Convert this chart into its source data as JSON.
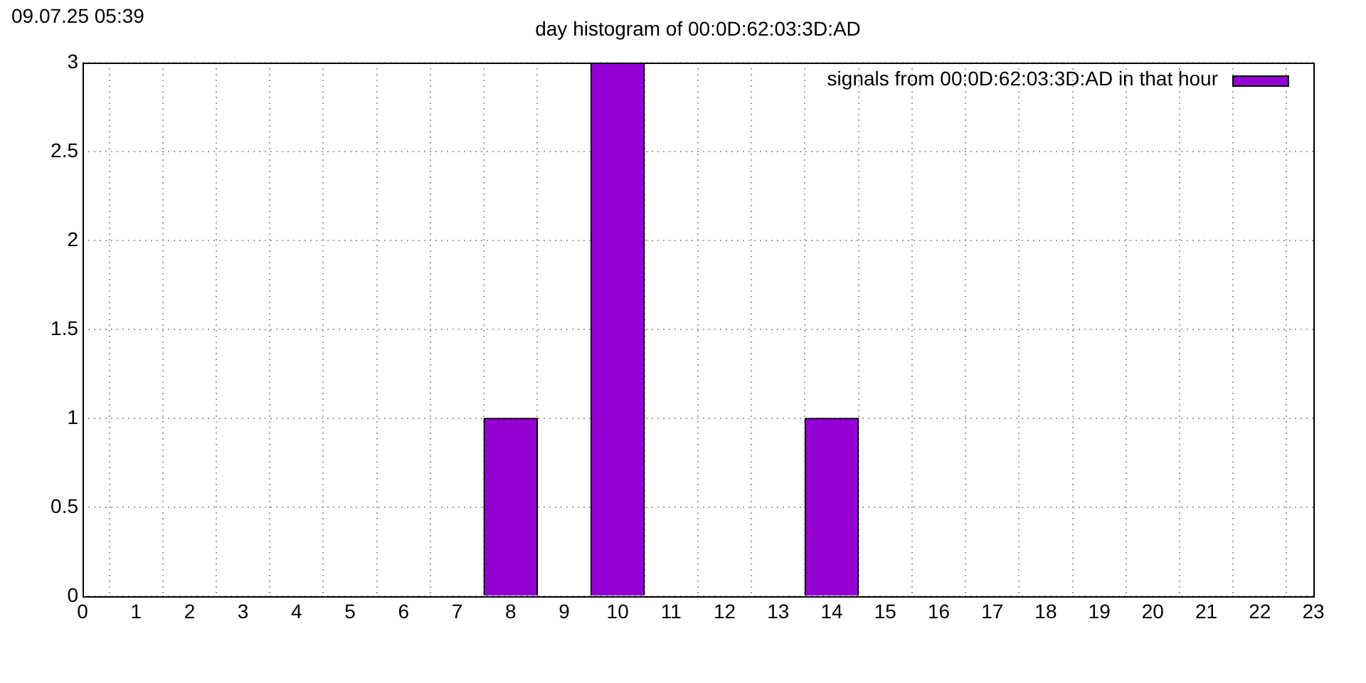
{
  "chart_data": {
    "type": "bar",
    "title": "day histogram of 00:0D:62:03:3D:AD",
    "annotations": [
      "09.07.25 05:39"
    ],
    "x": [
      8,
      10,
      14
    ],
    "series": [
      {
        "name": "signals from 00:0D:62:03:3D:AD in that hour",
        "color": "#9400d3",
        "values": [
          1,
          3,
          1
        ]
      }
    ],
    "xlim": [
      0,
      23
    ],
    "xticks": [
      0,
      1,
      2,
      3,
      4,
      5,
      6,
      7,
      8,
      9,
      10,
      11,
      12,
      13,
      14,
      15,
      16,
      17,
      18,
      19,
      20,
      21,
      22,
      23
    ],
    "ylim": [
      0,
      3
    ],
    "yticks": [
      0,
      0.5,
      1,
      1.5,
      2,
      2.5,
      3
    ],
    "grid": true,
    "legend": "top right"
  }
}
